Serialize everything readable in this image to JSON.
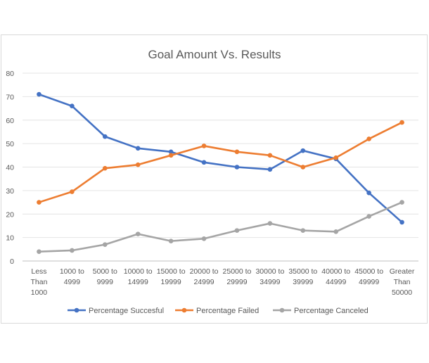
{
  "chart_data": {
    "type": "line",
    "title": "Goal Amount Vs. Results",
    "xlabel": "",
    "ylabel": "",
    "ylim": [
      0,
      80
    ],
    "yticks": [
      0,
      10,
      20,
      30,
      40,
      50,
      60,
      70,
      80
    ],
    "grid": true,
    "legend_position": "bottom",
    "categories": [
      "Less Than 1000",
      "1000 to 4999",
      "5000 to 9999",
      "10000 to 14999",
      "15000 to 19999",
      "20000 to 24999",
      "25000 to 29999",
      "30000 to 34999",
      "35000 to 39999",
      "40000 to 44999",
      "45000 to 49999",
      "Greater Than 50000"
    ],
    "category_lines": [
      [
        "Less",
        "Than",
        "1000"
      ],
      [
        "1000 to",
        "4999"
      ],
      [
        "5000 to",
        "9999"
      ],
      [
        "10000 to",
        "14999"
      ],
      [
        "15000 to",
        "19999"
      ],
      [
        "20000 to",
        "24999"
      ],
      [
        "25000 to",
        "29999"
      ],
      [
        "30000 to",
        "34999"
      ],
      [
        "35000 to",
        "39999"
      ],
      [
        "40000 to",
        "44999"
      ],
      [
        "45000 to",
        "49999"
      ],
      [
        "Greater",
        "Than",
        "50000"
      ]
    ],
    "series": [
      {
        "name": "Percentage Succesful",
        "color": "#4472c4",
        "values": [
          71,
          66,
          53,
          48,
          46.5,
          42,
          40,
          39,
          47,
          43.5,
          29,
          16.5
        ]
      },
      {
        "name": "Percentage Failed",
        "color": "#ed7d31",
        "values": [
          25,
          29.5,
          39.5,
          41,
          45,
          49,
          46.5,
          45,
          40,
          44,
          52,
          59
        ]
      },
      {
        "name": "Percentage Canceled",
        "color": "#a5a5a5",
        "values": [
          4,
          4.5,
          7,
          11.5,
          8.5,
          9.5,
          13,
          16,
          13,
          12.5,
          19,
          25
        ]
      }
    ]
  }
}
